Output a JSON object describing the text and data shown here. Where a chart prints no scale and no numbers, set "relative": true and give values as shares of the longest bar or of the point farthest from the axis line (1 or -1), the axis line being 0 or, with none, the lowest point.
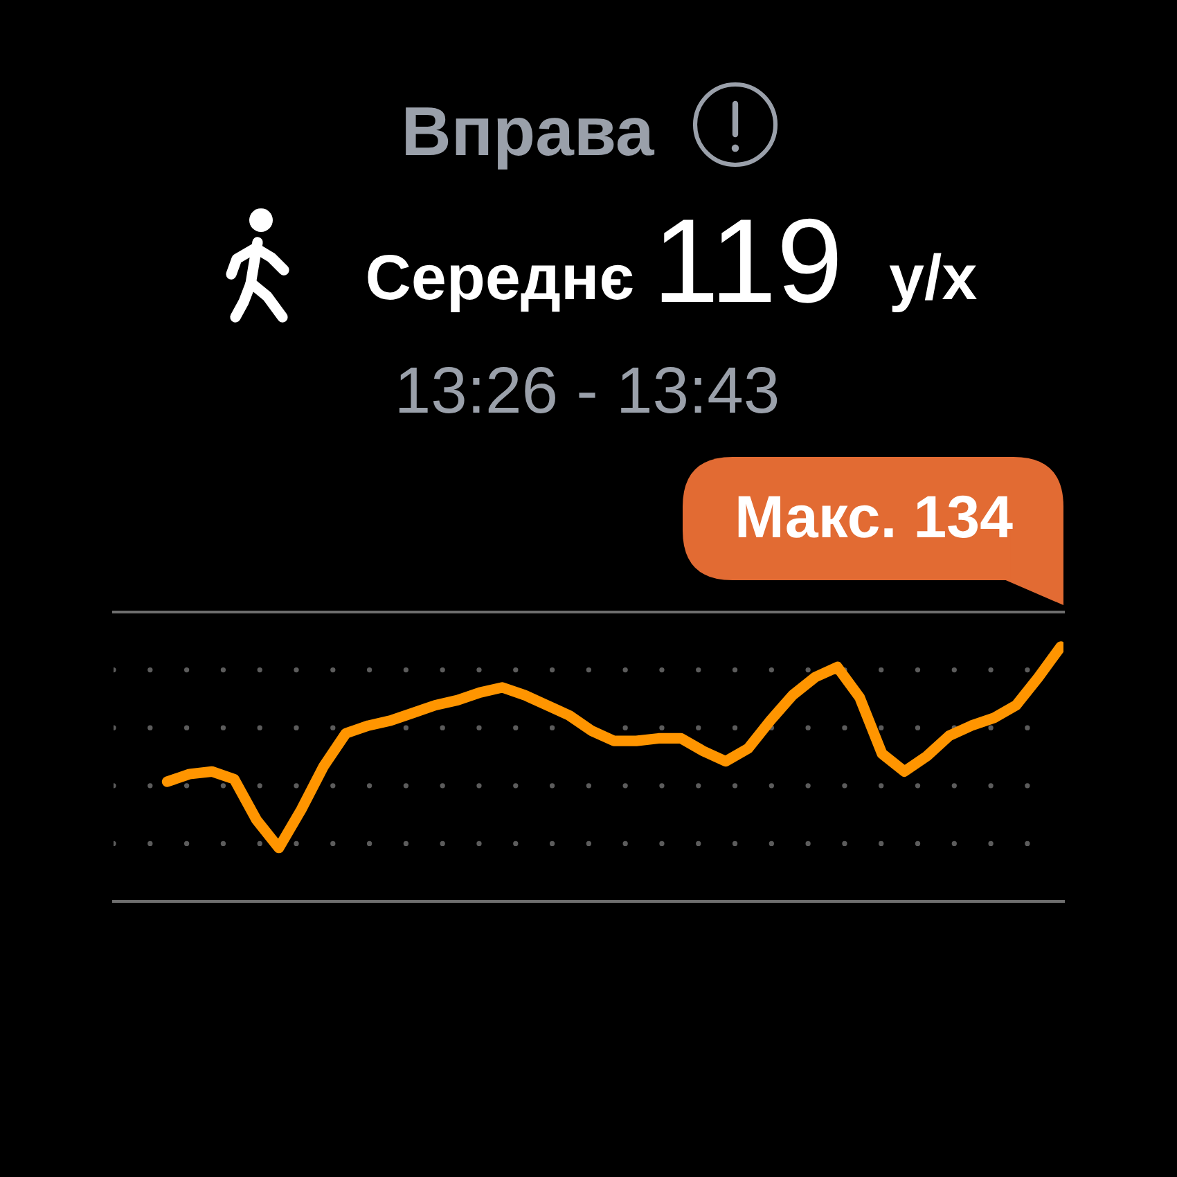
{
  "chart_data": {
    "type": "line",
    "title": "Вправа",
    "subtitle": "13:26 - 13:43",
    "annotations": [
      "Середнє",
      "119",
      "у/х",
      "Макс. 134"
    ],
    "categories": [
      null,
      null,
      null,
      null,
      null,
      null,
      null,
      null,
      null,
      null,
      null,
      null,
      null,
      null,
      null,
      null,
      null,
      null,
      null,
      null,
      null,
      null,
      null,
      null,
      null,
      null,
      null,
      null,
      null,
      null,
      null,
      null,
      null,
      null,
      null,
      null,
      null,
      null,
      null,
      null,
      null
    ],
    "series": [
      {
        "color": "#ff9500",
        "values": [
          0.47,
          0.5,
          0.51,
          0.48,
          0.32,
          0.21,
          0.36,
          0.53,
          0.66,
          0.69,
          0.71,
          0.74,
          0.77,
          0.79,
          0.82,
          0.84,
          0.81,
          0.77,
          0.73,
          0.67,
          0.63,
          0.63,
          0.64,
          0.64,
          0.59,
          0.55,
          0.6,
          0.71,
          0.81,
          0.88,
          0.92,
          0.8,
          0.58,
          0.51,
          0.57,
          0.65,
          0.69,
          0.72,
          0.77,
          0.88,
          1
        ]
      }
    ],
    "relative": true,
    "grid": "y",
    "line_style": "solid",
    "marker": "none"
  }
}
